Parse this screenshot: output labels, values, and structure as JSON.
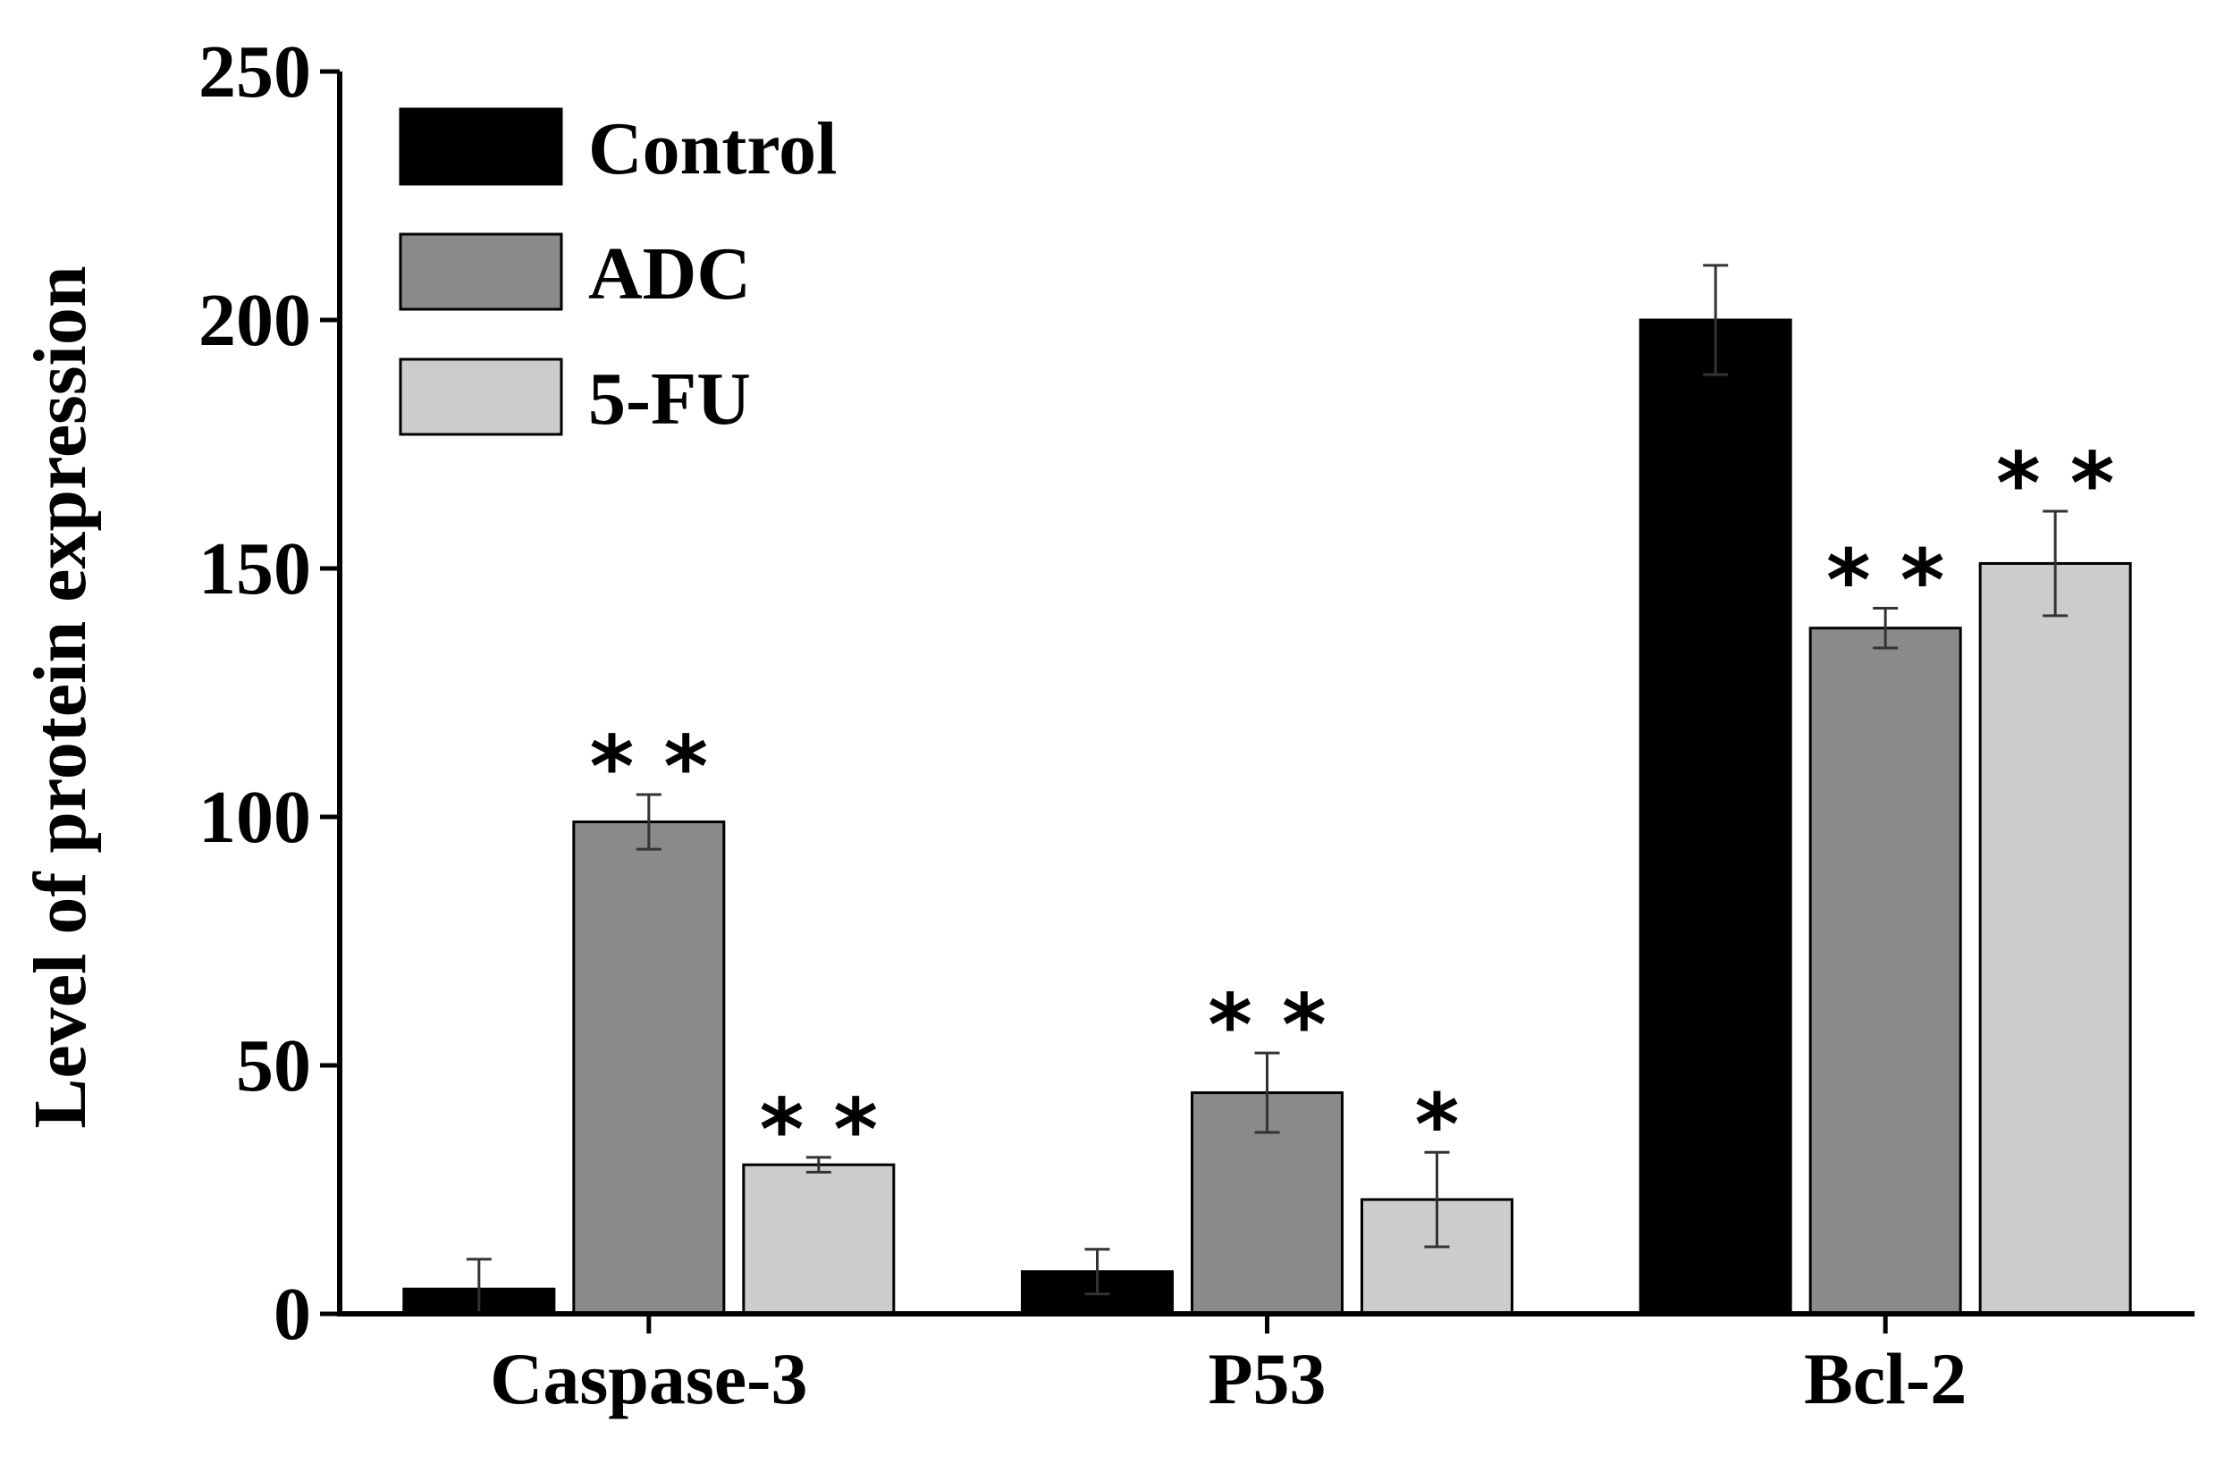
{
  "chart_data": {
    "type": "bar",
    "title": "",
    "xlabel": "",
    "ylabel": "Level of protein expression",
    "ylim": [
      0,
      250
    ],
    "yticks": [
      0,
      50,
      100,
      150,
      200,
      250
    ],
    "grid": false,
    "legend_position": "top-left",
    "categories": [
      "Caspase-3",
      "P53",
      "Bcl-2"
    ],
    "series": [
      {
        "name": "Control",
        "color": "#000000",
        "values": [
          5,
          8.5,
          200
        ],
        "errors": [
          6,
          4.5,
          11
        ],
        "significance": [
          "",
          "",
          ""
        ]
      },
      {
        "name": "ADC",
        "color": "#8a8a8a",
        "values": [
          99,
          44.5,
          138
        ],
        "errors": [
          5.5,
          8,
          4
        ],
        "significance": [
          "* *",
          "* *",
          "* *"
        ]
      },
      {
        "name": "5-FU",
        "color": "#cccccc",
        "values": [
          30,
          23,
          151
        ],
        "errors": [
          1.5,
          9.5,
          10.5
        ],
        "significance": [
          "* *",
          "*",
          "* *"
        ]
      }
    ]
  }
}
